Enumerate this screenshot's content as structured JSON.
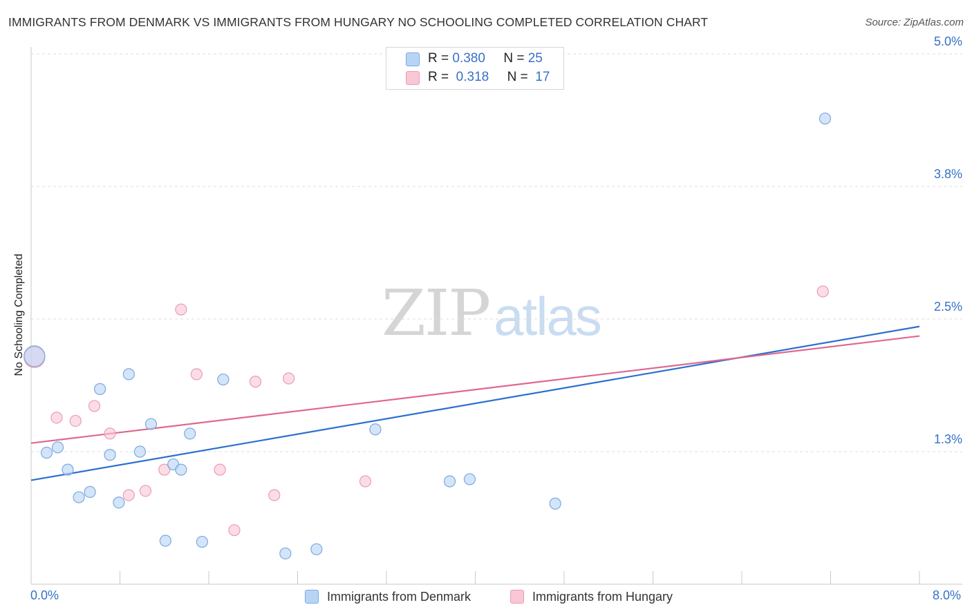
{
  "header": {
    "title": "IMMIGRANTS FROM DENMARK VS IMMIGRANTS FROM HUNGARY NO SCHOOLING COMPLETED CORRELATION CHART",
    "source": "Source: ZipAtlas.com"
  },
  "watermark": {
    "zip": "ZIP",
    "atlas": "atlas"
  },
  "legend": {
    "rows": [
      {
        "r_label": "R =",
        "r_value": "0.380",
        "n_label": "N =",
        "n_value": "25"
      },
      {
        "r_label": "R =",
        "r_value": "0.318",
        "n_label": "N =",
        "n_value": "17"
      }
    ]
  },
  "colors": {
    "denmark_fill": "#b8d4f5",
    "denmark_stroke": "#7aa8e0",
    "denmark_line": "#2a6fd0",
    "hungary_fill": "#f9c7d5",
    "hungary_stroke": "#ec9ab2",
    "hungary_line": "#e0668f",
    "tick_text": "#3670c8",
    "grid": "#dddddd"
  },
  "chart_data": {
    "type": "scatter",
    "title": "IMMIGRANTS FROM DENMARK VS IMMIGRANTS FROM HUNGARY NO SCHOOLING COMPLETED CORRELATION CHART",
    "xlabel": "",
    "ylabel": "No Schooling Completed",
    "xlim": [
      0.0,
      8.0
    ],
    "ylim": [
      0.0,
      5.0
    ],
    "x_tick_labels": [
      "0.0%",
      "8.0%"
    ],
    "y_ticks": [
      1.25,
      2.5,
      3.75,
      5.0
    ],
    "y_tick_labels": [
      "1.3%",
      "2.5%",
      "3.8%",
      "5.0%"
    ],
    "grid": true,
    "series": [
      {
        "name": "Immigrants from Denmark",
        "r": 0.38,
        "n": 25,
        "trend": {
          "x": [
            0.0,
            8.0
          ],
          "y": [
            0.98,
            2.43
          ]
        },
        "points": [
          {
            "x": 0.03,
            "y": 2.15,
            "big": true
          },
          {
            "x": 0.14,
            "y": 1.24
          },
          {
            "x": 0.24,
            "y": 1.29
          },
          {
            "x": 0.33,
            "y": 1.08
          },
          {
            "x": 0.43,
            "y": 0.82
          },
          {
            "x": 0.53,
            "y": 0.87
          },
          {
            "x": 0.62,
            "y": 1.84
          },
          {
            "x": 0.71,
            "y": 1.22
          },
          {
            "x": 0.79,
            "y": 0.77
          },
          {
            "x": 0.88,
            "y": 1.98
          },
          {
            "x": 0.98,
            "y": 1.25
          },
          {
            "x": 1.08,
            "y": 1.51
          },
          {
            "x": 1.21,
            "y": 0.41
          },
          {
            "x": 1.28,
            "y": 1.13
          },
          {
            "x": 1.35,
            "y": 1.08
          },
          {
            "x": 1.43,
            "y": 1.42
          },
          {
            "x": 1.54,
            "y": 0.4
          },
          {
            "x": 1.73,
            "y": 1.93
          },
          {
            "x": 2.29,
            "y": 0.29
          },
          {
            "x": 2.57,
            "y": 0.33
          },
          {
            "x": 3.1,
            "y": 1.46
          },
          {
            "x": 3.77,
            "y": 0.97
          },
          {
            "x": 3.95,
            "y": 0.99
          },
          {
            "x": 4.72,
            "y": 0.76
          },
          {
            "x": 7.15,
            "y": 4.39
          }
        ]
      },
      {
        "name": "Immigrants from Hungary",
        "r": 0.318,
        "n": 17,
        "trend": {
          "x": [
            0.0,
            8.0
          ],
          "y": [
            1.33,
            2.34
          ]
        },
        "points": [
          {
            "x": 0.03,
            "y": 2.14,
            "big": true
          },
          {
            "x": 0.23,
            "y": 1.57
          },
          {
            "x": 0.4,
            "y": 1.54
          },
          {
            "x": 0.57,
            "y": 1.68
          },
          {
            "x": 0.71,
            "y": 1.42
          },
          {
            "x": 0.88,
            "y": 0.84
          },
          {
            "x": 1.03,
            "y": 0.88
          },
          {
            "x": 1.2,
            "y": 1.08
          },
          {
            "x": 1.35,
            "y": 2.59
          },
          {
            "x": 1.49,
            "y": 1.98
          },
          {
            "x": 1.7,
            "y": 1.08
          },
          {
            "x": 1.83,
            "y": 0.51
          },
          {
            "x": 2.02,
            "y": 1.91
          },
          {
            "x": 2.19,
            "y": 0.84
          },
          {
            "x": 2.32,
            "y": 1.94
          },
          {
            "x": 3.01,
            "y": 0.97
          },
          {
            "x": 7.13,
            "y": 2.76
          }
        ]
      }
    ]
  }
}
